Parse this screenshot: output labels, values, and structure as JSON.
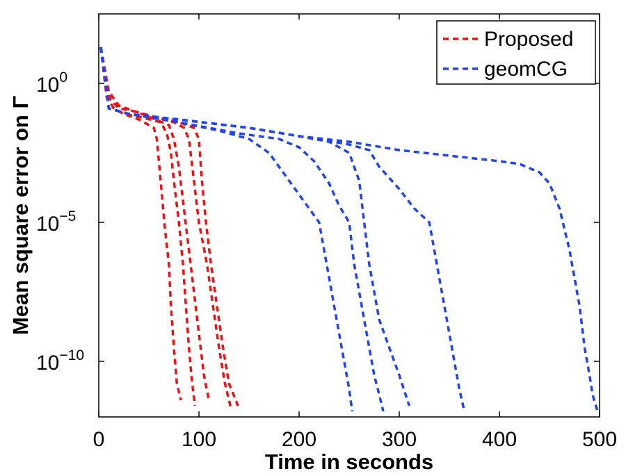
{
  "chart_data": {
    "type": "line",
    "title": "",
    "xlabel": "Time in seconds",
    "ylabel": "Mean square error on Γ",
    "xlim": [
      0,
      500
    ],
    "ylim": [
      -12,
      2.5
    ],
    "yscale": "log",
    "xticks": [
      0,
      100,
      200,
      300,
      400,
      500
    ],
    "yticks": [
      {
        "value": 0,
        "base": "10",
        "exp": "0"
      },
      {
        "value": -5,
        "base": "10",
        "exp": "−5"
      },
      {
        "value": -10,
        "base": "10",
        "exp": "−10"
      }
    ],
    "legend_position": "top-right",
    "grid": false,
    "y_note": "y values are log10 of mean square error",
    "series": [
      {
        "name": "Proposed",
        "color": "#ee1111",
        "style": "dashed",
        "curves": [
          {
            "x": [
              2,
              8,
              15,
              25,
              40,
              55,
              58,
              60,
              63,
              66,
              70,
              72,
              75,
              78,
              82
            ],
            "y": [
              1.3,
              -0.5,
              -0.9,
              -1.1,
              -1.3,
              -1.6,
              -2.0,
              -2.8,
              -4.0,
              -5.2,
              -6.5,
              -8.0,
              -9.5,
              -10.8,
              -11.4
            ]
          },
          {
            "x": [
              2,
              8,
              15,
              25,
              40,
              62,
              68,
              72,
              75,
              80,
              84,
              87,
              90,
              93,
              96
            ],
            "y": [
              1.3,
              -0.5,
              -0.9,
              -1.1,
              -1.2,
              -1.4,
              -1.8,
              -2.5,
              -3.5,
              -5.0,
              -6.5,
              -8.0,
              -9.5,
              -10.7,
              -11.6
            ]
          },
          {
            "x": [
              2,
              8,
              12,
              20,
              35,
              50,
              70,
              75,
              80,
              85,
              90,
              95,
              100,
              105,
              110
            ],
            "y": [
              1.3,
              -0.2,
              -0.6,
              -0.9,
              -1.0,
              -1.2,
              -1.5,
              -2.0,
              -3.0,
              -4.5,
              -6.0,
              -7.5,
              -9.0,
              -10.5,
              -11.4
            ]
          },
          {
            "x": [
              2,
              10,
              20,
              35,
              55,
              75,
              85,
              90,
              95,
              100,
              108,
              114,
              120,
              126,
              132
            ],
            "y": [
              1.3,
              -0.3,
              -0.8,
              -1.0,
              -1.2,
              -1.4,
              -1.6,
              -2.0,
              -3.5,
              -5.0,
              -6.5,
              -8.0,
              -9.5,
              -10.8,
              -11.7
            ]
          },
          {
            "x": [
              2,
              10,
              20,
              35,
              55,
              80,
              95,
              100,
              103,
              107,
              112,
              118,
              124,
              130,
              139
            ],
            "y": [
              1.3,
              -0.3,
              -0.8,
              -1.0,
              -1.2,
              -1.4,
              -1.6,
              -2.0,
              -3.5,
              -5.0,
              -6.5,
              -8.0,
              -9.5,
              -10.8,
              -11.6
            ]
          }
        ]
      },
      {
        "name": "geomCG",
        "color": "#2244ee",
        "style": "dashed",
        "curves": [
          {
            "x": [
              2,
              10,
              30,
              80,
              120,
              150,
              170,
              190,
              210,
              220,
              225,
              230,
              235,
              240,
              245,
              250,
              253
            ],
            "y": [
              1.3,
              -0.9,
              -1.1,
              -1.4,
              -1.7,
              -2.0,
              -2.5,
              -3.5,
              -4.5,
              -5.0,
              -6.0,
              -7.0,
              -8.0,
              -9.0,
              -10.0,
              -11.0,
              -11.8
            ]
          },
          {
            "x": [
              2,
              10,
              30,
              80,
              140,
              180,
              200,
              215,
              230,
              240,
              250,
              255,
              260,
              265,
              270,
              275,
              280,
              284
            ],
            "y": [
              1.3,
              -0.9,
              -1.1,
              -1.4,
              -1.8,
              -2.0,
              -2.3,
              -2.8,
              -3.6,
              -4.4,
              -5.0,
              -6.5,
              -7.5,
              -8.5,
              -9.5,
              -10.5,
              -11.2,
              -11.8
            ]
          },
          {
            "x": [
              2,
              10,
              30,
              80,
              150,
              200,
              230,
              250,
              260,
              265,
              270,
              275,
              280,
              290,
              300,
              310
            ],
            "y": [
              1.3,
              -0.9,
              -1.1,
              -1.3,
              -1.6,
              -1.9,
              -2.1,
              -2.5,
              -3.5,
              -5.0,
              -6.5,
              -7.5,
              -8.5,
              -9.5,
              -10.5,
              -11.6
            ]
          },
          {
            "x": [
              2,
              10,
              30,
              80,
              150,
              200,
              250,
              270,
              280,
              300,
              315,
              330,
              335,
              340,
              345,
              350,
              355,
              360,
              365
            ],
            "y": [
              1.3,
              -0.9,
              -1.1,
              -1.3,
              -1.6,
              -1.9,
              -2.2,
              -2.4,
              -3.0,
              -3.8,
              -4.5,
              -5.0,
              -6.0,
              -7.0,
              -8.0,
              -9.0,
              -10.0,
              -11.0,
              -11.8
            ]
          },
          {
            "x": [
              2,
              10,
              30,
              80,
              150,
              200,
              250,
              300,
              350,
              400,
              420,
              440,
              450,
              460,
              470,
              475,
              480,
              485,
              490,
              493,
              498
            ],
            "y": [
              1.3,
              -0.9,
              -1.1,
              -1.3,
              -1.6,
              -1.9,
              -2.1,
              -2.4,
              -2.6,
              -2.8,
              -2.9,
              -3.2,
              -3.6,
              -4.5,
              -6.0,
              -7.0,
              -8.0,
              -9.5,
              -10.5,
              -11.2,
              -11.8
            ]
          }
        ]
      }
    ]
  }
}
